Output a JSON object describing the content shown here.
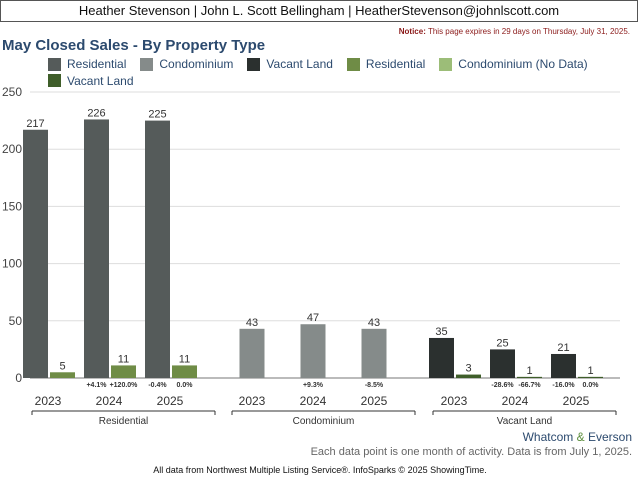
{
  "header": {
    "contact": "Heather Stevenson | John L. Scott Bellingham | HeatherStevenson@johnlscott.com",
    "notice_label": "Notice:",
    "notice_text": " This page expires in 29 days on Thursday, July 31, 2025."
  },
  "colors": {
    "residential_dark": "#555b5a",
    "condominium_dark": "#858b8a",
    "vacant_dark": "#2b302f",
    "residential_green": "#6f8c46",
    "condominium_nodata_green": "#9cbd78",
    "vacant_green": "#3f5e2a"
  },
  "chart_data": {
    "type": "bar",
    "title": "May Closed Sales - By Property Type",
    "ylim": [
      0,
      250
    ],
    "yticks": [
      "0",
      "50",
      "100",
      "150",
      "200",
      "250"
    ],
    "grid": true,
    "legend_placement": "top",
    "legend": [
      {
        "label": "Residential",
        "color": "#555b5a"
      },
      {
        "label": "Condominium",
        "color": "#858b8a"
      },
      {
        "label": "Vacant Land",
        "color": "#2b302f"
      },
      {
        "label": "Residential",
        "color": "#6f8c46"
      },
      {
        "label": "Condominium (No Data)",
        "color": "#9cbd78"
      },
      {
        "label": "Vacant Land",
        "color": "#3f5e2a"
      }
    ],
    "groups": [
      {
        "name": "Residential",
        "years": [
          "2023",
          "2024",
          "2025"
        ],
        "series": [
          {
            "values": [
              217,
              226,
              225
            ],
            "labels": [
              "217",
              "226",
              "225"
            ],
            "color": "#555b5a"
          },
          {
            "values": [
              5,
              11,
              11
            ],
            "labels": [
              "5",
              "11",
              "11"
            ],
            "color": "#6f8c46"
          }
        ],
        "changes": [
          [
            "",
            ""
          ],
          [
            "+4.1%",
            "+120.0%"
          ],
          [
            "-0.4%",
            "0.0%"
          ]
        ]
      },
      {
        "name": "Condominium",
        "years": [
          "2023",
          "2024",
          "2025"
        ],
        "series": [
          {
            "values": [
              43,
              47,
              43
            ],
            "labels": [
              "43",
              "47",
              "43"
            ],
            "color": "#858b8a"
          }
        ],
        "changes": [
          [
            ""
          ],
          [
            "+9.3%"
          ],
          [
            "-8.5%"
          ]
        ]
      },
      {
        "name": "Vacant Land",
        "years": [
          "2023",
          "2024",
          "2025"
        ],
        "series": [
          {
            "values": [
              35,
              25,
              21
            ],
            "labels": [
              "35",
              "25",
              "21"
            ],
            "color": "#2b302f"
          },
          {
            "values": [
              3,
              1,
              1
            ],
            "labels": [
              "3",
              "1",
              "1"
            ],
            "color": "#3f5e2a"
          }
        ],
        "changes": [
          [
            "",
            ""
          ],
          [
            "-28.6%",
            "-66.7%"
          ],
          [
            "-16.0%",
            "0.0%"
          ]
        ]
      }
    ]
  },
  "footer": {
    "region_a": "Whatcom",
    "region_amp": " & ",
    "region_b": "Everson",
    "note": "Each data point is one month of activity. Data is from July 1, 2025.",
    "source": "All data from Northwest Multiple Listing Service®. InfoSparks © 2025 ShowingTime."
  }
}
